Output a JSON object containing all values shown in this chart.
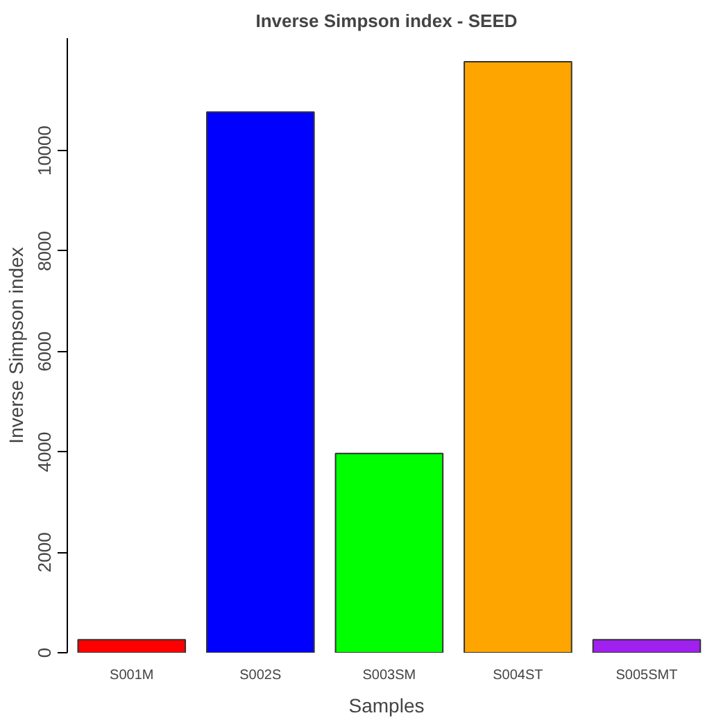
{
  "chart_data": {
    "type": "bar",
    "title": "Inverse Simpson index - SEED",
    "xlabel": "Samples",
    "ylabel": "Inverse Simpson index",
    "categories": [
      "S001M",
      "S002S",
      "S003SM",
      "S004ST",
      "S005SMT"
    ],
    "values": [
      260,
      10770,
      3970,
      11770,
      260
    ],
    "colors": [
      "#ff0000",
      "#0000ff",
      "#00ff00",
      "#ffa500",
      "#a020f0"
    ],
    "ylim": [
      0,
      12240
    ],
    "yticks": [
      0,
      2000,
      4000,
      6000,
      8000,
      10000
    ],
    "grid": false
  }
}
